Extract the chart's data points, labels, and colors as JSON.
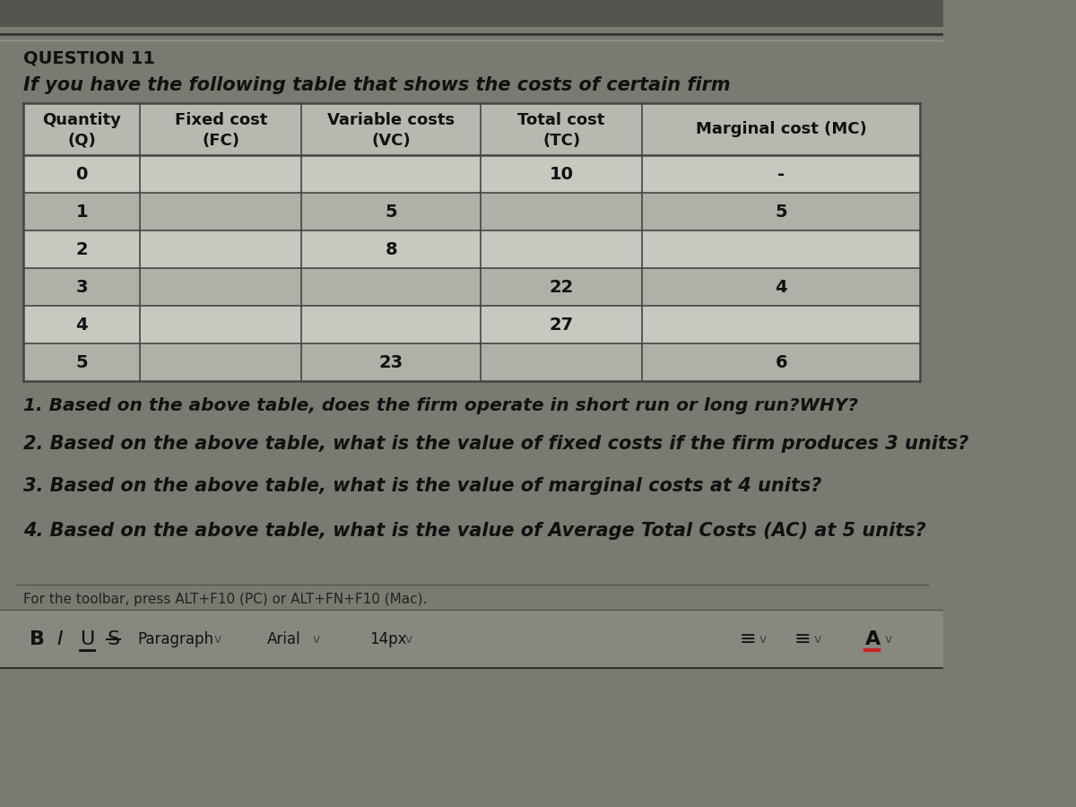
{
  "title": "QUESTION 11",
  "subtitle": "If you have the following table that shows the costs of certain firm",
  "table_headers": [
    "Quantity\n(Q)",
    "Fixed cost\n(FC)",
    "Variable costs\n(VC)",
    "Total cost\n(TC)",
    "Marginal cost (MC)"
  ],
  "table_rows": [
    [
      "0",
      "",
      "",
      "10",
      "-"
    ],
    [
      "1",
      "",
      "5",
      "",
      "5"
    ],
    [
      "2",
      "",
      "8",
      "",
      ""
    ],
    [
      "3",
      "",
      "",
      "22",
      "4"
    ],
    [
      "4",
      "",
      "",
      "27",
      ""
    ],
    [
      "5",
      "",
      "23",
      "",
      "6"
    ]
  ],
  "questions": [
    "1. Based on the above table, does the firm operate in short run or long run?​WHY?",
    "2. Based on the above table, what is the value of fixed costs if the firm produces 3 units?",
    "3. Based on the above table, what is the value of marginal costs at 4 units?",
    "4. Based on the above table, what is the value of Average Total Costs (AC) at 5 units?"
  ],
  "toolbar_text": "For the toolbar, press ALT+F10 (PC) or ALT+FN+F10 (Mac).",
  "bg_color": "#7a7a72",
  "table_cell_light": "#c8c8c0",
  "table_cell_dark": "#b0b0a8",
  "header_bg": "#b8b8b0",
  "text_color": "#111111",
  "border_color": "#444444",
  "toolbar_bg": "#888880",
  "top_stripe_dark": "#555550",
  "top_stripe_light": "#a0a098"
}
